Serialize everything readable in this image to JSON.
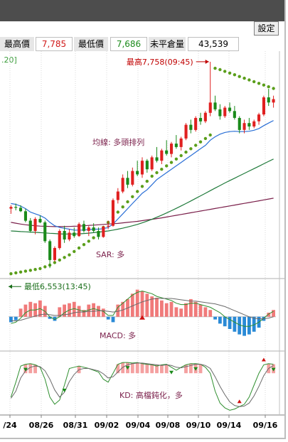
{
  "toolbar": {
    "settings_label": "設定"
  },
  "stats": {
    "high_label": "最高價",
    "high_value": "7,785",
    "low_label": "最低價",
    "low_value": "7,686",
    "oi_label": "未平倉量",
    "oi_value": "43,539"
  },
  "period_text": ".20]",
  "chart_data": [
    {
      "type": "candlestick",
      "annotations": {
        "high": "最高7,758(09:45)",
        "low": "最低6,553(13:45)",
        "ma": "均線: 多頭排列",
        "sar": "SAR: 多"
      },
      "x_labels": [
        "/24",
        "08/26",
        "08/31",
        "09/02",
        "09/04",
        "09/08",
        "09/10",
        "09/14",
        "09/16"
      ],
      "candles": [
        [
          6900,
          6920,
          6870,
          6910
        ],
        [
          6910,
          6930,
          6890,
          6905
        ],
        [
          6905,
          6920,
          6880,
          6885
        ],
        [
          6885,
          6900,
          6820,
          6830
        ],
        [
          6830,
          6845,
          6760,
          6770
        ],
        [
          6770,
          6850,
          6750,
          6840
        ],
        [
          6840,
          6860,
          6815,
          6820
        ],
        [
          6820,
          6830,
          6700,
          6710
        ],
        [
          6710,
          6720,
          6553,
          6600
        ],
        [
          6600,
          6680,
          6590,
          6670
        ],
        [
          6670,
          6780,
          6660,
          6770
        ],
        [
          6770,
          6800,
          6700,
          6720
        ],
        [
          6720,
          6780,
          6710,
          6760
        ],
        [
          6760,
          6790,
          6730,
          6740
        ],
        [
          6740,
          6820,
          6735,
          6810
        ],
        [
          6810,
          6830,
          6760,
          6770
        ],
        [
          6770,
          6800,
          6740,
          6790
        ],
        [
          6790,
          6815,
          6760,
          6770
        ],
        [
          6770,
          6790,
          6720,
          6735
        ],
        [
          6735,
          6800,
          6730,
          6795
        ],
        [
          6795,
          6830,
          6780,
          6800
        ],
        [
          6800,
          6960,
          6795,
          6950
        ],
        [
          6950,
          7020,
          6930,
          7000
        ],
        [
          7000,
          7100,
          6990,
          7080
        ],
        [
          7080,
          7120,
          7020,
          7040
        ],
        [
          7040,
          7140,
          7030,
          7120
        ],
        [
          7120,
          7180,
          7090,
          7100
        ],
        [
          7100,
          7200,
          7080,
          7180
        ],
        [
          7180,
          7190,
          7110,
          7130
        ],
        [
          7130,
          7210,
          7120,
          7200
        ],
        [
          7200,
          7260,
          7170,
          7180
        ],
        [
          7180,
          7250,
          7160,
          7240
        ],
        [
          7240,
          7300,
          7210,
          7220
        ],
        [
          7220,
          7290,
          7200,
          7280
        ],
        [
          7280,
          7330,
          7250,
          7260
        ],
        [
          7260,
          7320,
          7240,
          7310
        ],
        [
          7310,
          7400,
          7300,
          7390
        ],
        [
          7390,
          7420,
          7340,
          7360
        ],
        [
          7360,
          7440,
          7350,
          7430
        ],
        [
          7430,
          7460,
          7390,
          7410
        ],
        [
          7410,
          7470,
          7400,
          7460
        ],
        [
          7460,
          7758,
          7440,
          7520
        ],
        [
          7520,
          7560,
          7470,
          7480
        ],
        [
          7480,
          7510,
          7420,
          7440
        ],
        [
          7440,
          7500,
          7430,
          7490
        ],
        [
          7490,
          7520,
          7460,
          7470
        ],
        [
          7470,
          7500,
          7420,
          7430
        ],
        [
          7430,
          7440,
          7340,
          7360
        ],
        [
          7360,
          7420,
          7340,
          7400
        ],
        [
          7400,
          7430,
          7360,
          7380
        ],
        [
          7380,
          7420,
          7370,
          7410
        ],
        [
          7410,
          7460,
          7390,
          7450
        ],
        [
          7450,
          7560,
          7440,
          7550
        ],
        [
          7550,
          7600,
          7500,
          7520
        ],
        [
          7520,
          7560,
          7490,
          7540
        ]
      ],
      "sar": [
        6520,
        6525,
        6530,
        6535,
        6540,
        6545,
        6550,
        6560,
        6570,
        6585,
        6600,
        6615,
        6630,
        6650,
        6670,
        6690,
        6710,
        6730,
        6760,
        6790,
        6820,
        6850,
        6880,
        6910,
        6940,
        6970,
        7000,
        7030,
        7060,
        7090,
        7110,
        7130,
        7150,
        7170,
        7190,
        7210,
        7230,
        7250,
        7270,
        7290,
        7310,
        7330,
        7720,
        7712,
        7702,
        7692,
        7682,
        7672,
        7662,
        7652,
        7642,
        7632,
        7622,
        7612,
        7602
      ],
      "ma_fast": [
        6930,
        6925,
        6915,
        6900,
        6880,
        6870,
        6860,
        6845,
        6820,
        6800,
        6790,
        6785,
        6780,
        6775,
        6775,
        6775,
        6778,
        6780,
        6780,
        6783,
        6790,
        6810,
        6840,
        6870,
        6900,
        6930,
        6960,
        6990,
        7010,
        7040,
        7070,
        7090,
        7110,
        7130,
        7150,
        7170,
        7190,
        7210,
        7230,
        7250,
        7270,
        7300,
        7320,
        7335,
        7345,
        7350,
        7352,
        7350,
        7350,
        7352,
        7358,
        7368,
        7385,
        7400,
        7415
      ],
      "ma_mid": [
        6770,
        6768,
        6766,
        6765,
        6763,
        6762,
        6760,
        6758,
        6756,
        6755,
        6753,
        6752,
        6752,
        6752,
        6753,
        6755,
        6757,
        6760,
        6763,
        6766,
        6770,
        6775,
        6780,
        6786,
        6793,
        6800,
        6808,
        6817,
        6827,
        6838,
        6850,
        6862,
        6875,
        6888,
        6902,
        6916,
        6930,
        6945,
        6960,
        6975,
        6990,
        7005,
        7020,
        7035,
        7050,
        7064,
        7078,
        7092,
        7106,
        7120,
        7134,
        7148,
        7162,
        7176,
        7190
      ],
      "ma_slow": [
        6820,
        6815,
        6810,
        6806,
        6803,
        6800,
        6798,
        6797,
        6796,
        6795,
        6795,
        6795,
        6796,
        6797,
        6798,
        6800,
        6802,
        6804,
        6806,
        6808,
        6810,
        6812,
        6814,
        6817,
        6820,
        6823,
        6826,
        6830,
        6834,
        6838,
        6842,
        6846,
        6851,
        6856,
        6861,
        6866,
        6871,
        6876,
        6881,
        6886,
        6891,
        6896,
        6901,
        6906,
        6911,
        6916,
        6921,
        6926,
        6931,
        6936,
        6941,
        6946,
        6951,
        6956,
        6961
      ],
      "y_range": [
        6500,
        7820
      ],
      "macd": {
        "annotation": "MACD: 多",
        "hist": [
          -8,
          -5,
          12,
          18,
          22,
          20,
          24,
          16,
          -3,
          -6,
          14,
          18,
          20,
          22,
          16,
          10,
          18,
          20,
          16,
          12,
          -4,
          -8,
          18,
          22,
          26,
          34,
          40,
          38,
          34,
          30,
          28,
          24,
          20,
          22,
          14,
          12,
          20,
          26,
          22,
          18,
          14,
          10,
          -4,
          -10,
          -14,
          -18,
          -22,
          -26,
          -28,
          -26,
          -22,
          -16,
          -6,
          6,
          10
        ],
        "dif": [
          -10,
          -8,
          -2,
          6,
          10,
          10,
          12,
          8,
          0,
          -4,
          0,
          6,
          10,
          12,
          10,
          8,
          10,
          12,
          10,
          8,
          2,
          2,
          14,
          20,
          26,
          32,
          36,
          38,
          36,
          34,
          30,
          28,
          26,
          24,
          20,
          18,
          18,
          20,
          20,
          18,
          16,
          14,
          10,
          6,
          0,
          -4,
          -8,
          -12,
          -14,
          -14,
          -12,
          -8,
          -2,
          4,
          8
        ],
        "macd": [
          -6,
          -6,
          -5,
          -3,
          -1,
          1,
          3,
          4,
          3,
          2,
          2,
          3,
          4,
          6,
          7,
          7,
          8,
          8,
          9,
          9,
          8,
          7,
          8,
          10,
          13,
          16,
          19,
          22,
          24,
          26,
          27,
          27,
          27,
          27,
          26,
          25,
          24,
          23,
          23,
          22,
          21,
          20,
          19,
          17,
          15,
          12,
          9,
          6,
          3,
          0,
          -2,
          -3,
          -3,
          -2,
          0
        ],
        "y_range": [
          -40,
          50
        ]
      },
      "kd": {
        "annotation": "KD: 高檔鈍化，多",
        "k": [
          30,
          55,
          82,
          85,
          86,
          84,
          80,
          60,
          30,
          18,
          25,
          50,
          78,
          80,
          82,
          80,
          78,
          75,
          72,
          60,
          55,
          70,
          85,
          88,
          88,
          87,
          88,
          86,
          85,
          84,
          82,
          84,
          85,
          80,
          75,
          80,
          84,
          86,
          86,
          85,
          80,
          70,
          40,
          20,
          12,
          8,
          10,
          14,
          18,
          30,
          50,
          70,
          84,
          86,
          85
        ],
        "d": [
          28,
          40,
          62,
          74,
          80,
          82,
          81,
          74,
          60,
          42,
          30,
          38,
          56,
          68,
          76,
          78,
          78,
          76,
          74,
          69,
          62,
          64,
          72,
          80,
          84,
          86,
          87,
          87,
          86,
          85,
          84,
          83,
          84,
          83,
          80,
          79,
          81,
          83,
          85,
          85,
          83,
          78,
          64,
          48,
          34,
          22,
          16,
          14,
          15,
          20,
          32,
          48,
          66,
          78,
          83
        ],
        "markers": [
          {
            "i": 3,
            "type": "down"
          },
          {
            "i": 11,
            "type": "down"
          },
          {
            "i": 24,
            "type": "down"
          },
          {
            "i": 33,
            "type": "down"
          },
          {
            "i": 38,
            "type": "down"
          },
          {
            "i": 54,
            "type": "down"
          },
          {
            "i": 47,
            "type": "up"
          },
          {
            "i": 52,
            "type": "up"
          }
        ],
        "y_range": [
          0,
          100
        ]
      }
    }
  ]
}
